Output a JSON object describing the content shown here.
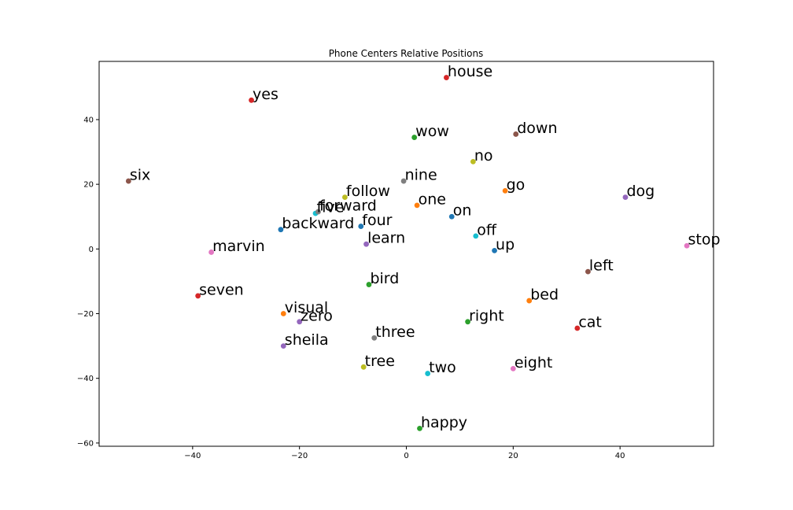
{
  "chart_data": {
    "type": "scatter",
    "title": "Phone Centers Relative Positions",
    "xlabel": "",
    "ylabel": "",
    "xlim": [
      -57.5,
      57.5
    ],
    "ylim": [
      -61,
      58
    ],
    "x_ticks": [
      -40,
      -20,
      0,
      20,
      40
    ],
    "y_ticks": [
      -60,
      -40,
      -20,
      0,
      20,
      40
    ],
    "x_tick_labels": [
      "−40",
      "−20",
      "0",
      "20",
      "40"
    ],
    "y_tick_labels": [
      "−60",
      "−40",
      "−20",
      "0",
      "20",
      "40"
    ],
    "grid": false,
    "legend": "none",
    "points": [
      {
        "label": "house",
        "x": 7.5,
        "y": 53.0,
        "color": "#d62728"
      },
      {
        "label": "yes",
        "x": -29.0,
        "y": 46.0,
        "color": "#d62728"
      },
      {
        "label": "wow",
        "x": 1.5,
        "y": 34.5,
        "color": "#2ca02c"
      },
      {
        "label": "down",
        "x": 20.5,
        "y": 35.5,
        "color": "#8c564b"
      },
      {
        "label": "no",
        "x": 12.5,
        "y": 27.0,
        "color": "#bcbd22"
      },
      {
        "label": "six",
        "x": -52.0,
        "y": 21.0,
        "color": "#8c564b"
      },
      {
        "label": "nine",
        "x": -0.5,
        "y": 21.0,
        "color": "#7f7f7f"
      },
      {
        "label": "go",
        "x": 18.5,
        "y": 18.0,
        "color": "#ff7f0e"
      },
      {
        "label": "dog",
        "x": 41.0,
        "y": 16.0,
        "color": "#9467bd"
      },
      {
        "label": "follow",
        "x": -11.5,
        "y": 16.0,
        "color": "#bcbd22"
      },
      {
        "label": "one",
        "x": 2.0,
        "y": 13.5,
        "color": "#ff7f0e"
      },
      {
        "label": "five",
        "x": -17.0,
        "y": 11.0,
        "color": "#17becf"
      },
      {
        "label": "forward",
        "x": -16.5,
        "y": 11.5,
        "color": "#7f7f7f"
      },
      {
        "label": "on",
        "x": 8.5,
        "y": 10.0,
        "color": "#1f77b4"
      },
      {
        "label": "four",
        "x": -8.5,
        "y": 7.0,
        "color": "#1f77b4"
      },
      {
        "label": "backward",
        "x": -23.5,
        "y": 6.0,
        "color": "#1f77b4"
      },
      {
        "label": "off",
        "x": 13.0,
        "y": 4.0,
        "color": "#17becf"
      },
      {
        "label": "learn",
        "x": -7.5,
        "y": 1.5,
        "color": "#9467bd"
      },
      {
        "label": "stop",
        "x": 52.5,
        "y": 1.0,
        "color": "#e377c2"
      },
      {
        "label": "up",
        "x": 16.5,
        "y": -0.5,
        "color": "#1f77b4"
      },
      {
        "label": "marvin",
        "x": -36.5,
        "y": -1.0,
        "color": "#e377c2"
      },
      {
        "label": "left",
        "x": 34.0,
        "y": -7.0,
        "color": "#8c564b"
      },
      {
        "label": "bird",
        "x": -7.0,
        "y": -11.0,
        "color": "#2ca02c"
      },
      {
        "label": "seven",
        "x": -39.0,
        "y": -14.5,
        "color": "#d62728"
      },
      {
        "label": "bed",
        "x": 23.0,
        "y": -16.0,
        "color": "#ff7f0e"
      },
      {
        "label": "visual",
        "x": -23.0,
        "y": -20.0,
        "color": "#ff7f0e"
      },
      {
        "label": "zero",
        "x": -20.0,
        "y": -22.5,
        "color": "#9467bd"
      },
      {
        "label": "right",
        "x": 11.5,
        "y": -22.5,
        "color": "#2ca02c"
      },
      {
        "label": "cat",
        "x": 32.0,
        "y": -24.5,
        "color": "#d62728"
      },
      {
        "label": "three",
        "x": -6.0,
        "y": -27.5,
        "color": "#7f7f7f"
      },
      {
        "label": "sheila",
        "x": -23.0,
        "y": -30.0,
        "color": "#9467bd"
      },
      {
        "label": "tree",
        "x": -8.0,
        "y": -36.5,
        "color": "#bcbd22"
      },
      {
        "label": "eight",
        "x": 20.0,
        "y": -37.0,
        "color": "#e377c2"
      },
      {
        "label": "two",
        "x": 4.0,
        "y": -38.5,
        "color": "#17becf"
      },
      {
        "label": "happy",
        "x": 2.5,
        "y": -55.5,
        "color": "#2ca02c"
      }
    ]
  }
}
